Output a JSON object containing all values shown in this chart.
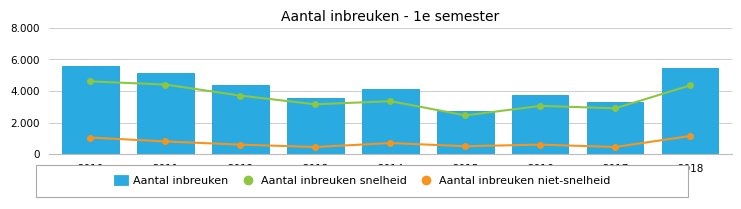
{
  "title": "Aantal inbreuken - 1e semester",
  "years": [
    2010,
    2011,
    2012,
    2013,
    2014,
    2015,
    2016,
    2017,
    2018
  ],
  "bar_values": [
    5600,
    5150,
    4350,
    3550,
    4150,
    2750,
    3750,
    3300,
    5450
  ],
  "line_snelheid": [
    4600,
    4400,
    3700,
    3150,
    3350,
    2450,
    3050,
    2900,
    4350
  ],
  "line_niet_snelheid": [
    1050,
    800,
    600,
    450,
    700,
    500,
    600,
    450,
    1150
  ],
  "bar_color": "#29ABE2",
  "bar_edge_color": "#1C9FD4",
  "line_snelheid_color": "#8DC63F",
  "line_niet_snelheid_color": "#F7941D",
  "background_color": "#FFFFFF",
  "grid_color": "#CCCCCC",
  "ylim": [
    0,
    8000
  ],
  "yticks": [
    0,
    2000,
    4000,
    6000,
    8000
  ],
  "ytick_labels": [
    "0",
    "2.000",
    "4.000",
    "6.000",
    "8.000"
  ],
  "legend_labels": [
    "Aantal inbreuken",
    "Aantal inbreuken snelheid",
    "Aantal inbreuken niet-snelheid"
  ],
  "title_fontsize": 10,
  "tick_fontsize": 7.5,
  "legend_fontsize": 8
}
